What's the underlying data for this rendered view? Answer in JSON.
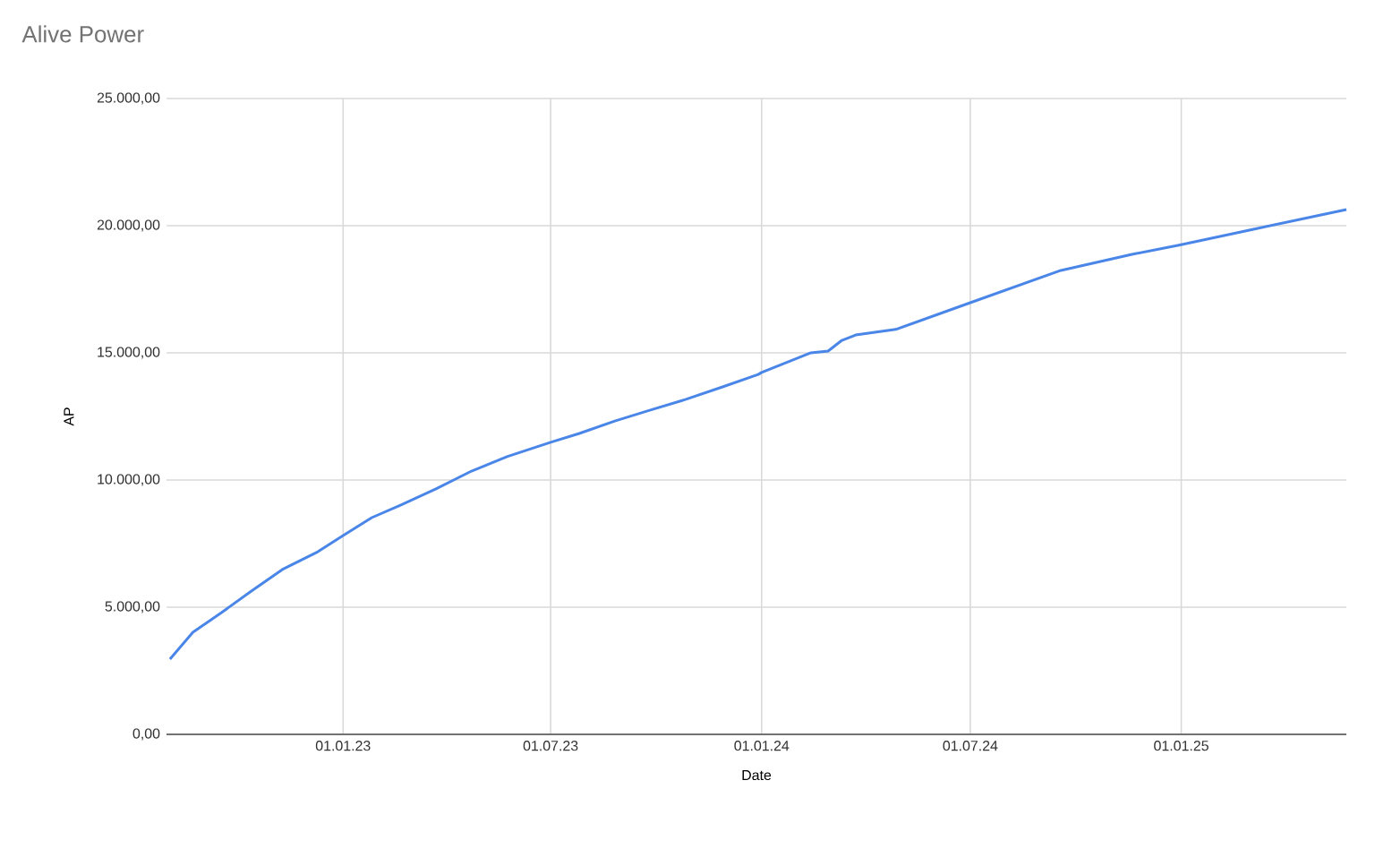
{
  "chart_data": {
    "type": "line",
    "title": "Alive Power",
    "xlabel": "Date",
    "ylabel": "AP",
    "x": [
      "2022-08-03",
      "2022-08-23",
      "2022-09-17",
      "2022-10-13",
      "2022-11-09",
      "2022-12-10",
      "2023-01-01",
      "2023-01-26",
      "2023-02-20",
      "2023-03-23",
      "2023-04-23",
      "2023-05-24",
      "2023-07-01",
      "2023-07-26",
      "2023-08-26",
      "2023-09-26",
      "2023-10-27",
      "2023-11-28",
      "2023-12-29",
      "2024-01-01",
      "2024-02-13",
      "2024-02-28",
      "2024-03-11",
      "2024-03-23",
      "2024-04-27",
      "2024-07-01",
      "2024-09-18",
      "2024-11-19",
      "2024-12-30",
      "2025-03-05",
      "2025-05-25"
    ],
    "series": [
      {
        "color": "#4a86e8",
        "values": [
          2960,
          4010,
          4790,
          5630,
          6480,
          7180,
          7820,
          8520,
          9010,
          9650,
          10350,
          10920,
          11480,
          11830,
          12320,
          12750,
          13170,
          13660,
          14150,
          14230,
          15000,
          15070,
          15490,
          15700,
          15920,
          16970,
          18240,
          18870,
          19230,
          19860,
          20630
        ]
      }
    ],
    "xlim": [
      "2022-07-31",
      "2025-05-25"
    ],
    "xticks": [
      {
        "value": "2023-01-01",
        "label": "01.01.23"
      },
      {
        "value": "2023-07-01",
        "label": "01.07.23"
      },
      {
        "value": "2024-01-01",
        "label": "01.01.24"
      },
      {
        "value": "2024-07-01",
        "label": "01.07.24"
      },
      {
        "value": "2025-01-01",
        "label": "01.01.25"
      }
    ],
    "ylim": [
      0,
      25000
    ],
    "yticks": [
      {
        "value": 0,
        "label": "0,00"
      },
      {
        "value": 5000,
        "label": "5.000,00"
      },
      {
        "value": 10000,
        "label": "10.000,00"
      },
      {
        "value": 15000,
        "label": "15.000,00"
      },
      {
        "value": 20000,
        "label": "20.000,00"
      },
      {
        "value": 25000,
        "label": "25.000,00"
      }
    ],
    "grid": true,
    "marker": "none",
    "line_style": "solid"
  }
}
